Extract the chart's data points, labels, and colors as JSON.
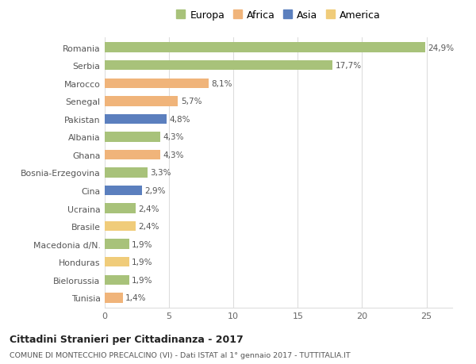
{
  "categories": [
    "Tunisia",
    "Bielorussia",
    "Honduras",
    "Macedonia d/N.",
    "Brasile",
    "Ucraina",
    "Cina",
    "Bosnia-Erzegovina",
    "Ghana",
    "Albania",
    "Pakistan",
    "Senegal",
    "Marocco",
    "Serbia",
    "Romania"
  ],
  "values": [
    1.4,
    1.9,
    1.9,
    1.9,
    2.4,
    2.4,
    2.9,
    3.3,
    4.3,
    4.3,
    4.8,
    5.7,
    8.1,
    17.7,
    24.9
  ],
  "labels": [
    "1,4%",
    "1,9%",
    "1,9%",
    "1,9%",
    "2,4%",
    "2,4%",
    "2,9%",
    "3,3%",
    "4,3%",
    "4,3%",
    "4,8%",
    "5,7%",
    "8,1%",
    "17,7%",
    "24,9%"
  ],
  "continents": [
    "Africa",
    "Europa",
    "America",
    "Europa",
    "America",
    "Europa",
    "Asia",
    "Europa",
    "Africa",
    "Europa",
    "Asia",
    "Africa",
    "Africa",
    "Europa",
    "Europa"
  ],
  "colors": {
    "Europa": "#a8c27a",
    "Africa": "#f0b47a",
    "Asia": "#5b7fbe",
    "America": "#f0cc7a"
  },
  "legend_order": [
    "Europa",
    "Africa",
    "Asia",
    "America"
  ],
  "title": "Cittadini Stranieri per Cittadinanza - 2017",
  "subtitle": "COMUNE DI MONTECCHIO PRECALCINO (VI) - Dati ISTAT al 1° gennaio 2017 - TUTTITALIA.IT",
  "xlim": [
    0,
    27
  ],
  "background_color": "#ffffff",
  "grid_color": "#dddddd",
  "bar_height": 0.55
}
